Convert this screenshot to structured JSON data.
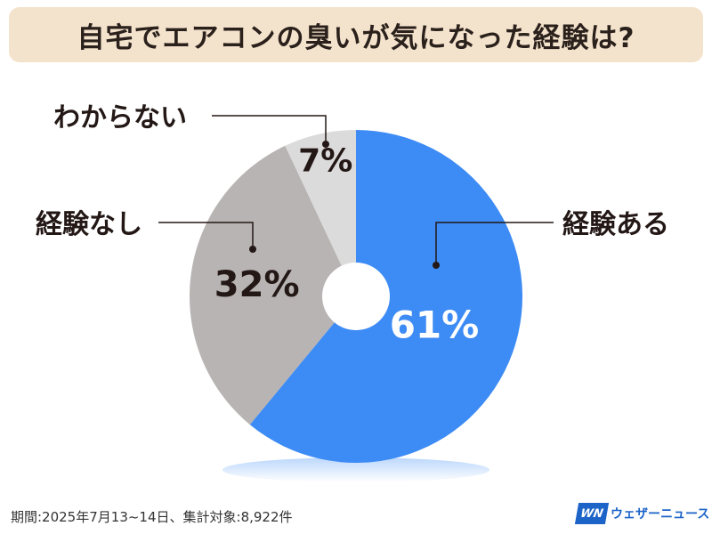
{
  "title": "自宅でエアコンの臭いが気になった経験は?",
  "chart_data": {
    "type": "pie",
    "categories": [
      "経験ある",
      "経験なし",
      "わからない"
    ],
    "values": [
      61,
      32,
      7
    ],
    "value_labels": [
      "61%",
      "32%",
      "7%"
    ],
    "colors": [
      "#3d8bf5",
      "#b7b4b3",
      "#dcdbdb"
    ],
    "label_colors": [
      "#ffffff",
      "#231815",
      "#231815"
    ],
    "donut": true
  },
  "footer": {
    "note": "期間:2025年7月13~14日、集計対象:8,922件",
    "brand_logo": "WN",
    "brand_name": "ウェザーニュース"
  }
}
